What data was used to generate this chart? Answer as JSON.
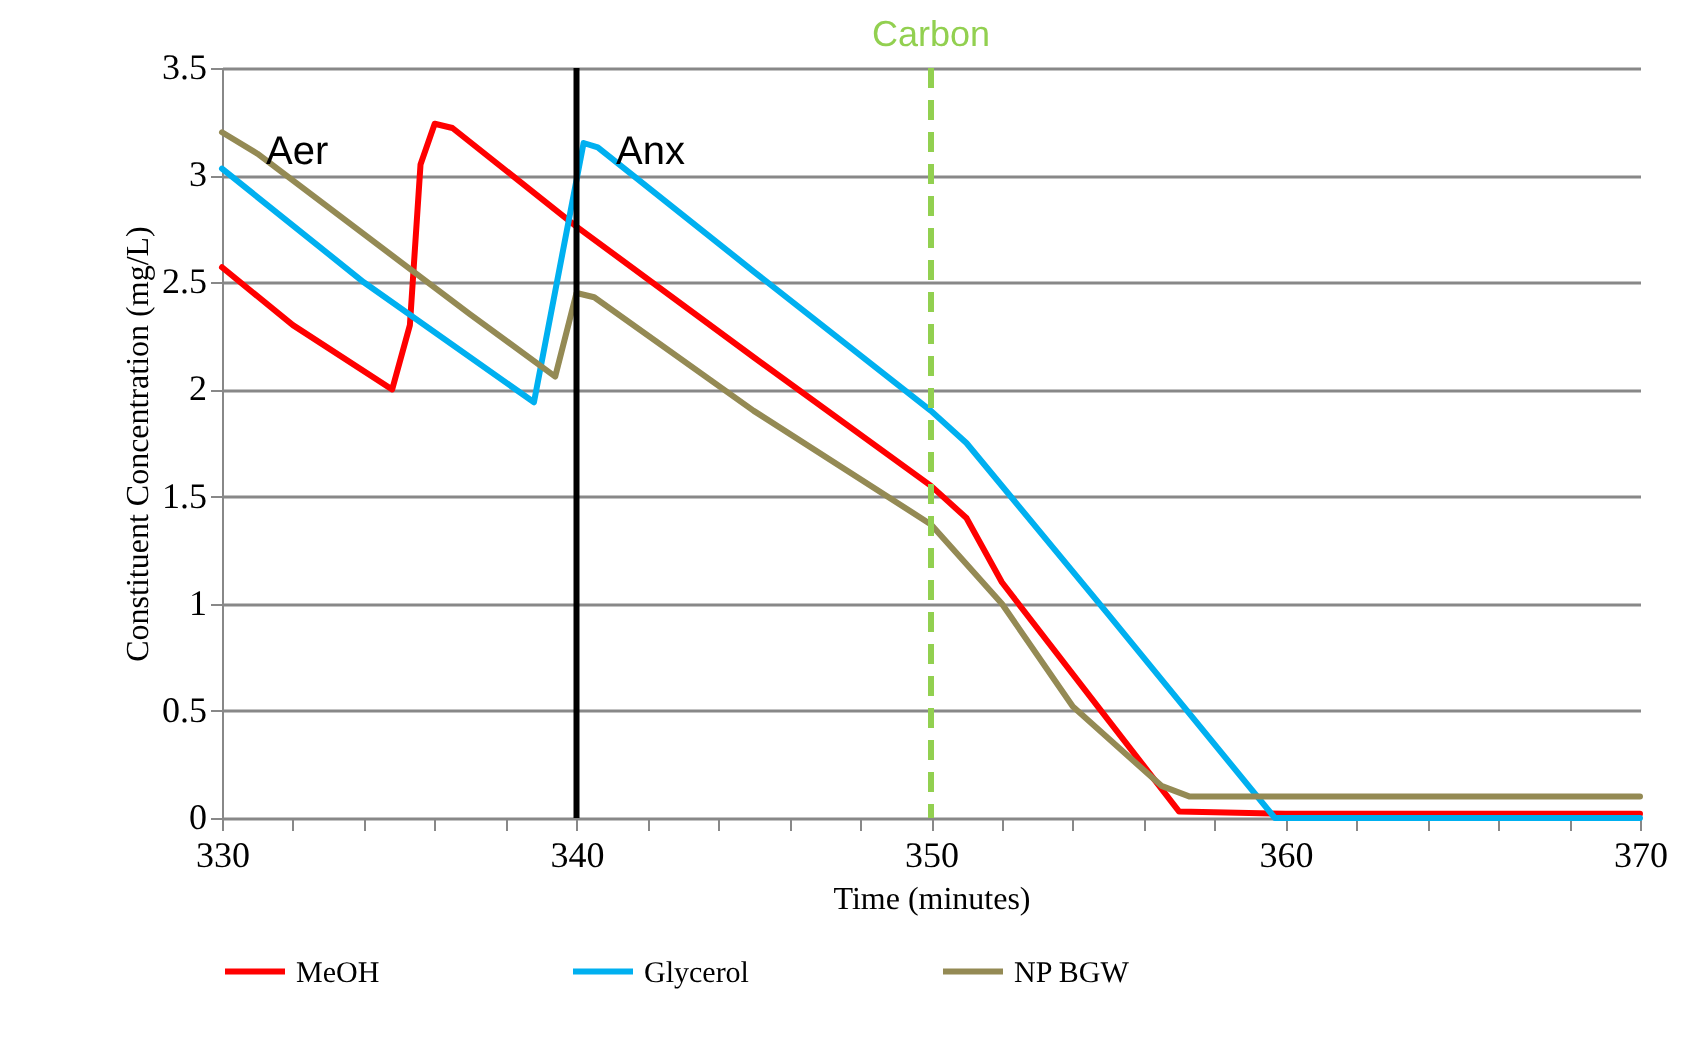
{
  "chart_data": {
    "type": "line",
    "xlabel": "Time (minutes)",
    "ylabel": "Constituent Concentration (mg/L)",
    "xlim": [
      330,
      370
    ],
    "ylim": [
      0,
      3.5
    ],
    "xticks": [
      330,
      {
        "value": 332,
        "label": null
      },
      {
        "value": 334,
        "label": null
      },
      {
        "value": 336,
        "label": null
      },
      {
        "value": 338,
        "label": null
      },
      340,
      {
        "value": 342,
        "label": null
      },
      {
        "value": 344,
        "label": null
      },
      {
        "value": 346,
        "label": null
      },
      {
        "value": 348,
        "label": null
      },
      350,
      {
        "value": 352,
        "label": null
      },
      {
        "value": 354,
        "label": null
      },
      {
        "value": 356,
        "label": null
      },
      {
        "value": 358,
        "label": null
      },
      360,
      {
        "value": 362,
        "label": null
      },
      {
        "value": 364,
        "label": null
      },
      {
        "value": 366,
        "label": null
      },
      {
        "value": 368,
        "label": null
      },
      370
    ],
    "yticks": [
      0,
      0.5,
      1,
      1.5,
      2,
      2.5,
      3,
      3.5
    ],
    "grid": "y",
    "legend": "bottom",
    "marker": "none",
    "line_style": "solid",
    "series": [
      {
        "name": "MeOH",
        "color": "#ff0000",
        "x": [
          330,
          332,
          334.8,
          335.3,
          335.6,
          336,
          336.5,
          340,
          345,
          350,
          351,
          352,
          354.8,
          357,
          360,
          370
        ],
        "values": [
          2.57,
          2.3,
          2.0,
          2.3,
          3.05,
          3.24,
          3.22,
          2.76,
          2.15,
          1.55,
          1.4,
          1.1,
          0.5,
          0.03,
          0.02,
          0.02
        ]
      },
      {
        "name": "Glycerol",
        "color": "#00b0f0",
        "x": [
          330,
          334,
          338.8,
          340.2,
          340.6,
          345,
          350,
          351,
          355,
          359.7,
          370
        ],
        "values": [
          3.03,
          2.5,
          1.94,
          3.15,
          3.13,
          2.55,
          1.9,
          1.75,
          0.95,
          0.0,
          0.0
        ]
      },
      {
        "name": "NP BGW",
        "color": "#948a54",
        "x": [
          330,
          331,
          335,
          337,
          339.4,
          340,
          340.5,
          345,
          350,
          352,
          354,
          356.5,
          357.3,
          358,
          370
        ],
        "values": [
          3.2,
          3.1,
          2.6,
          2.35,
          2.06,
          2.45,
          2.43,
          1.9,
          1.37,
          1.0,
          0.52,
          0.15,
          0.1,
          0.1,
          0.1
        ]
      }
    ],
    "ref_lines": [
      {
        "axis": "x",
        "value": 340,
        "color": "#000000",
        "line_style": "solid"
      },
      {
        "axis": "x",
        "value": 350,
        "label": "Carbon",
        "color": "#92d050",
        "line_style": "dashed"
      }
    ],
    "annotations": [
      "Aer",
      "Anx"
    ]
  }
}
